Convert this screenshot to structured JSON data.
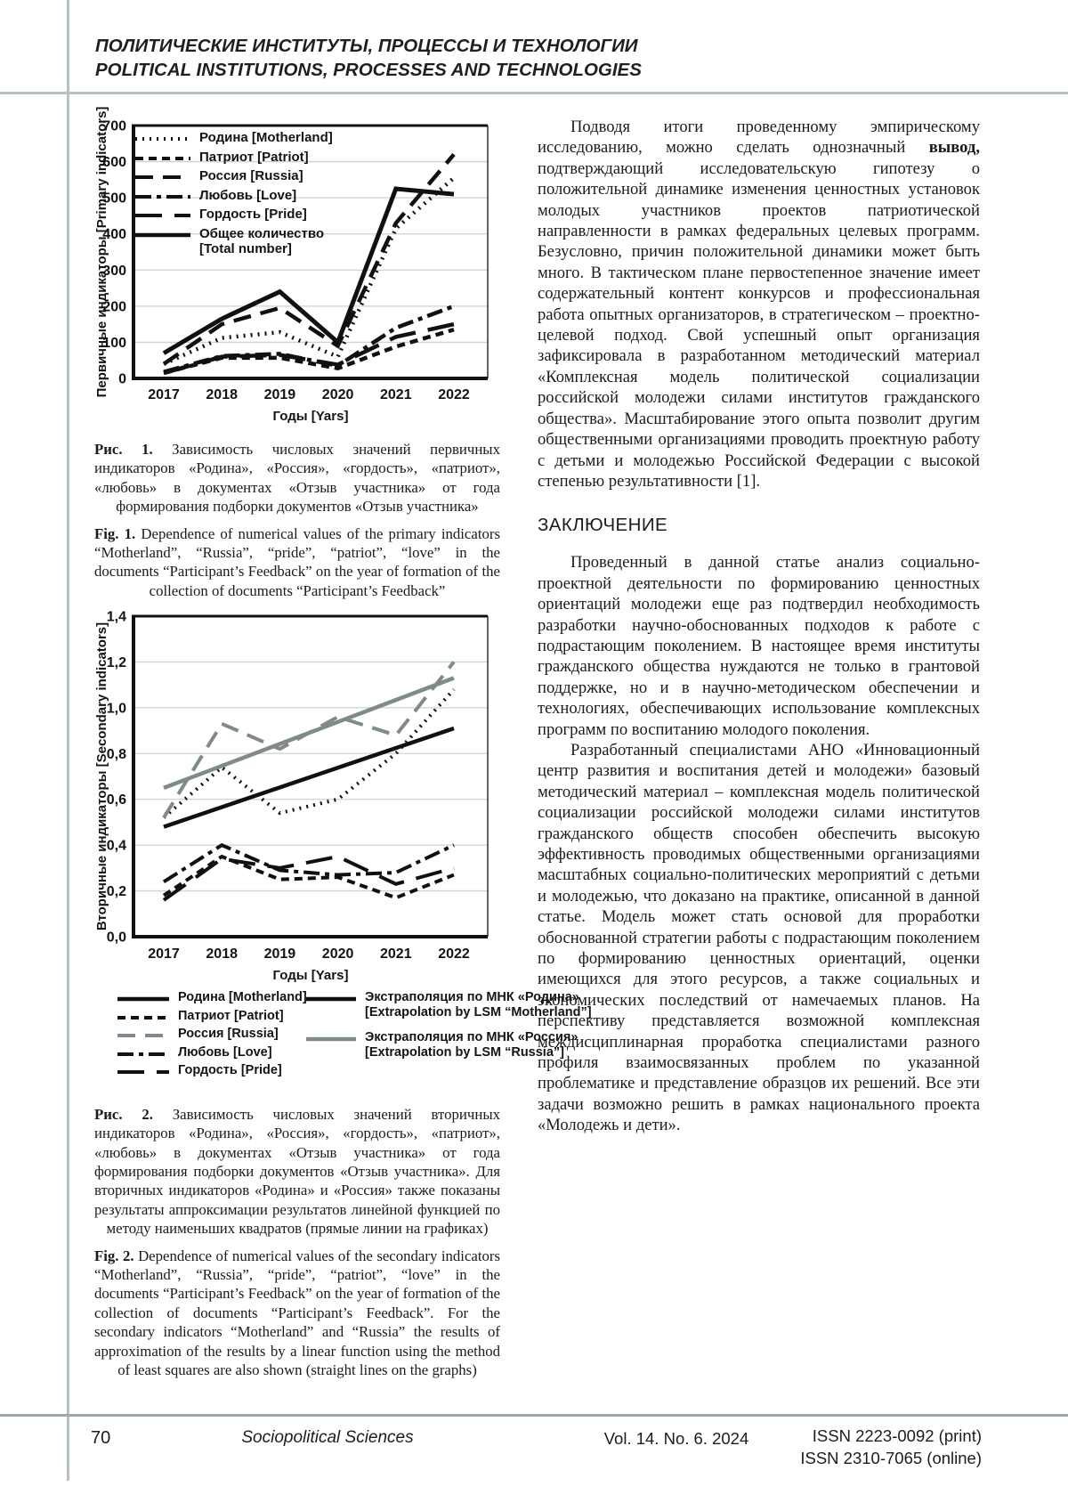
{
  "header": {
    "title_ru": "ПОЛИТИЧЕСКИЕ ИНСТИТУТЫ, ПРОЦЕССЫ И ТЕХНОЛОГИИ",
    "title_en": "POLITICAL INSTITUTIONS, PROCESSES AND TECHNOLOGIES"
  },
  "figure1": {
    "label_ru": "Рис. 1.",
    "caption_ru": " Зависимость числовых значений первичных индикаторов «Родина», «Россия», «гордость», «патриот», «любовь» в документах «Отзыв участника» от года формирования подборки документов «Отзыв участника»",
    "label_en": "Fig. 1.",
    "caption_en": " Dependence of numerical values of the primary indicators “Motherland”, “Russia”, “pride”, “patriot”, “love” in the documents “Participant’s Feedback” on the year of formation of the collection of documents “Participant’s Feedback”"
  },
  "figure2": {
    "label_ru": "Рис. 2.",
    "caption_ru": " Зависимость числовых значений вторичных индикаторов «Родина», «Россия», «гордость», «патриот», «любовь» в документах «Отзыв участника» от года формирования подборки документов «Отзыв участника». Для вторичных индикаторов «Родина» и «Россия» также показаны результаты аппроксимации результатов линейной функцией по методу наименьших квадратов (прямые линии на графиках)",
    "label_en": "Fig. 2.",
    "caption_en": " Dependence of numerical values of the secondary indicators “Motherland”, “Russia”, “pride”, “patriot”, “love” in the documents “Participant’s Feedback” on the year of formation of the collection of documents “Participant’s Feedback”. For the secondary indicators “Motherland” and “Russia” the results of approximation of the results by a linear function using the method of least squares are also shown (straight lines on the graphs)"
  },
  "article": {
    "p1": {
      "pre": "Подводя итоги проведенному эмпирическому исследованию, можно сделать однозначный ",
      "bold": "вывод,",
      "post": " подтверждающий исследовательскую гипотезу о положительной динамике изменения ценностных установок молодых участников проектов патриотической направленности в рамках федеральных целевых программ. Безусловно, причин положительной динамики может быть много. В тактическом плане первостепенное значение имеет содержательный контент конкурсов и профессиональная работа опытных организаторов, в стратегическом – проектно-целевой подход. Свой успешный опыт организация зафиксировала в разработанном методический материал «Комплексная модель политической социализации российской молодежи силами институтов гражданского общества». Масштабирование этого опыта позволит другим общественными организациями проводить проектную работу с детьми и молодежью Российской Федерации с высокой степенью результативности [1]."
    },
    "section_heading": "ЗАКЛЮЧЕНИЕ",
    "p2": "Проведенный в данной статье анализ социально-проектной деятельности по формированию ценностных ориентаций молодежи еще раз подтвердил необходимость разработки научно-обоснованных подходов к работе с подрастающим поколением. В настоящее время институты гражданского общества нуждаются не только в грантовой поддержке, но и в научно-методическом обеспечении и технологиях, обеспечивающих использование комплексных программ по воспитанию молодого поколения.",
    "p3": "Разработанный специалистами АНО «Инновационный центр развития и воспитания детей и молодежи» базовый методический материал – комплексная модель политической социализации российской молодежи силами институтов гражданского обществ способен обеспечить высокую эффективность проводимых общественными организациями масштабных социально-политических мероприятий с детьми и молодежью, что доказано на практике, описанной в данной статье. Модель может стать основой для проработки обоснованной стратегии работы с подрастающим поколением по формированию ценностных ориентаций, оценки имеющихся для этого ресурсов, а также социальных и экономических последствий от намечаемых планов. На перспективу представляется возможной комплексная междисциплинарная проработка специалистами разного профиля взаимосвязанных проблем по указанной проблематике и представление образцов их решений. Все эти задачи возможно решить в рамках национального проекта «Молодежь и дети»."
  },
  "footer": {
    "page_number": "70",
    "journal": "Sociopolitical Sciences",
    "volume": "Vol. 14. No. 6. 2024",
    "issn_print": "ISSN 2223-0092 (print)",
    "issn_online": "ISSN 2310-7065 (online)"
  },
  "chart_data": [
    {
      "type": "line",
      "categories": [
        "2017",
        "2018",
        "2019",
        "2020",
        "2021",
        "2022"
      ],
      "xlabel": "Годы [Yars]",
      "ylabel": "Первичные индикаторы [Primary indicators]",
      "ylim": [
        0,
        700
      ],
      "ytick": 100,
      "decimal_comma": false,
      "grid": true,
      "legend_position": "inside top-left",
      "lw": 4.5,
      "lw_solid": 5,
      "series": [
        {
          "name": "Родина [Motherland]",
          "style": "dotted",
          "color": "#101010",
          "values": [
            40,
            112,
            128,
            60,
            415,
            555
          ]
        },
        {
          "name": "Патриот [Patriot]",
          "style": "dash",
          "color": "#101010",
          "values": [
            15,
            57,
            57,
            28,
            88,
            135
          ]
        },
        {
          "name": "Россия [Russia]",
          "style": "longdash",
          "color": "#101010",
          "values": [
            40,
            150,
            195,
            90,
            430,
            620
          ]
        },
        {
          "name": "Любовь [Love]",
          "style": "dashdot",
          "color": "#101010",
          "values": [
            18,
            62,
            68,
            35,
            140,
            200
          ]
        },
        {
          "name": "Гордость [Pride]",
          "style": "xlongdash",
          "color": "#101010",
          "values": [
            15,
            60,
            65,
            38,
            115,
            150
          ]
        },
        {
          "name": "Общее количество",
          "name2": "[Total number]",
          "style": "solid",
          "color": "#101010",
          "values": [
            70,
            165,
            240,
            100,
            525,
            510
          ]
        }
      ]
    },
    {
      "type": "line",
      "categories": [
        "2017",
        "2018",
        "2019",
        "2020",
        "2021",
        "2022"
      ],
      "xlabel": "Годы [Yars]",
      "ylabel": "Вторичные индикаторы [Secondary indicators]",
      "ylim": [
        0,
        1.4
      ],
      "ytick": 0.2,
      "decimal_comma": true,
      "grid": true,
      "legend_position": "below two-column",
      "lw": 4,
      "lw_solid": 4.5,
      "series": [
        {
          "name": "Родина [Motherland]",
          "style": "dotted",
          "legend_style": "solid",
          "color": "#101010",
          "values": [
            0.52,
            0.74,
            0.54,
            0.6,
            0.8,
            1.08
          ]
        },
        {
          "name": "Патриот [Patriot]",
          "style": "dash",
          "color": "#101010",
          "values": [
            0.18,
            0.35,
            0.25,
            0.26,
            0.17,
            0.27
          ]
        },
        {
          "name": "Россия [Russia]",
          "style": "longdash",
          "color": "#7e8b88",
          "values": [
            0.52,
            0.93,
            0.82,
            0.96,
            0.88,
            1.2
          ]
        },
        {
          "name": "Любовь [Love]",
          "style": "dashdot",
          "color": "#101010",
          "values": [
            0.24,
            0.4,
            0.29,
            0.27,
            0.28,
            0.4
          ]
        },
        {
          "name": "Гордость [Pride]",
          "style": "xlongdash",
          "color": "#101010",
          "values": [
            0.16,
            0.34,
            0.3,
            0.35,
            0.23,
            0.3
          ]
        },
        {
          "name": "Экстраполяция по МНК «Родина»",
          "name2": "[Extrapolation by LSM “Motherland”]",
          "style": "solid",
          "color": "#101010",
          "values": [
            0.48,
            0.566,
            0.652,
            0.738,
            0.824,
            0.91
          ]
        },
        {
          "name": "Экстраполяция по МНК «Россия»",
          "name2": "[Extrapolation by LSM “Russia”]",
          "style": "solid",
          "color": "#7e8b88",
          "values": [
            0.65,
            0.746,
            0.842,
            0.938,
            1.034,
            1.13
          ]
        }
      ],
      "legend_groups": {
        "left": [
          0,
          1,
          2,
          3,
          4
        ],
        "right": [
          5,
          6
        ]
      }
    }
  ]
}
